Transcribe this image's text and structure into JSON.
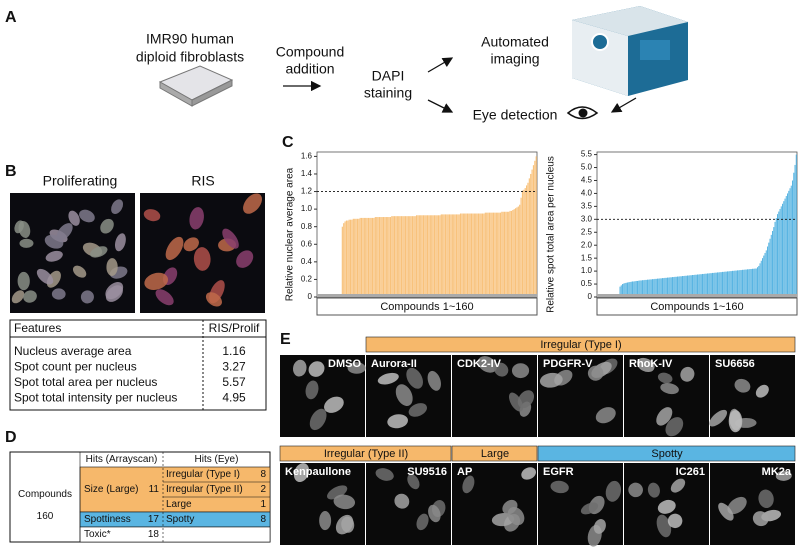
{
  "panel_labels": [
    "A",
    "B",
    "C",
    "D",
    "E"
  ],
  "workflow": {
    "cells": [
      "IMR90 human",
      "diploid fibroblasts"
    ],
    "compound": [
      "Compound",
      "addition"
    ],
    "staining": [
      "DAPI",
      "staining"
    ],
    "imaging": [
      "Automated",
      "imaging"
    ],
    "eye": "Eye detection"
  },
  "microscopy": {
    "proliferating": "Proliferating",
    "ris": "RIS"
  },
  "features_table": {
    "header": [
      "Features",
      "RIS/Prolif"
    ],
    "rows": [
      [
        "Nucleus average area",
        1.16
      ],
      [
        "Spot count per nucleus",
        3.27
      ],
      [
        "Spot total area per nucleus",
        5.57
      ],
      [
        "Spot total intensity per nucleus",
        4.95
      ]
    ]
  },
  "chart_data": [
    {
      "type": "bar",
      "y_label": "Relative nuclear average area",
      "x_label": "Compounds 1~160",
      "color": "#f8c27c",
      "threshold": 1.2,
      "ylim": [
        0,
        1.65
      ],
      "yticks": [
        0,
        0.2,
        0.4,
        0.6,
        0.8,
        {
          "value": 1,
          "label": "1.0"
        },
        1.2,
        1.4,
        1.6
      ],
      "values": [
        0,
        0,
        0,
        0,
        0,
        0,
        0,
        0,
        0,
        0,
        0,
        0,
        0,
        0,
        0,
        0,
        0,
        0,
        0.8,
        0.84,
        0.86,
        0.87,
        0.87,
        0.88,
        0.88,
        0.88,
        0.89,
        0.89,
        0.89,
        0.89,
        0.89,
        0.9,
        0.9,
        0.9,
        0.9,
        0.9,
        0.9,
        0.9,
        0.9,
        0.9,
        0.9,
        0.9,
        0.91,
        0.91,
        0.91,
        0.91,
        0.91,
        0.91,
        0.91,
        0.91,
        0.91,
        0.91,
        0.91,
        0.91,
        0.92,
        0.92,
        0.92,
        0.92,
        0.92,
        0.92,
        0.92,
        0.92,
        0.92,
        0.92,
        0.92,
        0.92,
        0.92,
        0.92,
        0.92,
        0.92,
        0.92,
        0.92,
        0.93,
        0.93,
        0.93,
        0.93,
        0.93,
        0.93,
        0.93,
        0.93,
        0.93,
        0.93,
        0.93,
        0.93,
        0.93,
        0.93,
        0.93,
        0.93,
        0.93,
        0.93,
        0.94,
        0.94,
        0.94,
        0.94,
        0.94,
        0.94,
        0.94,
        0.94,
        0.94,
        0.94,
        0.94,
        0.94,
        0.94,
        0.94,
        0.95,
        0.95,
        0.95,
        0.95,
        0.95,
        0.95,
        0.95,
        0.95,
        0.95,
        0.95,
        0.95,
        0.95,
        0.95,
        0.95,
        0.95,
        0.95,
        0.95,
        0.95,
        0.96,
        0.96,
        0.96,
        0.96,
        0.96,
        0.96,
        0.96,
        0.96,
        0.96,
        0.96,
        0.96,
        0.96,
        0.97,
        0.97,
        0.97,
        0.97,
        0.97,
        0.97,
        0.98,
        0.98,
        0.99,
        1.0,
        1.01,
        1.02,
        1.03,
        1.05,
        1.13,
        1.21,
        1.22,
        1.24,
        1.27,
        1.3,
        1.35,
        1.4,
        1.45,
        1.5,
        1.55,
        1.6
      ]
    },
    {
      "type": "bar",
      "y_label": "Relative spot total area per nucleus",
      "x_label": "Compounds 1~160",
      "color": "#5ab5e2",
      "threshold": 3,
      "ylim": [
        0,
        5.6
      ],
      "yticks": [
        0,
        0.5,
        {
          "value": 1,
          "label": "1.0"
        },
        1.5,
        {
          "value": 2,
          "label": "2.0"
        },
        2.5,
        {
          "value": 3,
          "label": "3.0"
        },
        3.5,
        {
          "value": 4,
          "label": "4.0"
        },
        4.5,
        {
          "value": 5,
          "label": "5.0"
        },
        5.5
      ],
      "values": [
        0,
        0,
        0,
        0,
        0,
        0,
        0,
        0,
        0,
        0,
        0,
        0,
        0,
        0,
        0,
        0,
        0,
        0,
        0.4,
        0.45,
        0.5,
        0.52,
        0.54,
        0.55,
        0.56,
        0.57,
        0.58,
        0.59,
        0.6,
        0.6,
        0.61,
        0.62,
        0.62,
        0.63,
        0.64,
        0.64,
        0.65,
        0.65,
        0.66,
        0.66,
        0.67,
        0.67,
        0.68,
        0.68,
        0.69,
        0.69,
        0.7,
        0.7,
        0.71,
        0.71,
        0.72,
        0.72,
        0.73,
        0.73,
        0.74,
        0.74,
        0.75,
        0.75,
        0.76,
        0.76,
        0.77,
        0.77,
        0.78,
        0.78,
        0.79,
        0.79,
        0.8,
        0.8,
        0.81,
        0.81,
        0.82,
        0.82,
        0.83,
        0.83,
        0.84,
        0.84,
        0.85,
        0.85,
        0.86,
        0.86,
        0.87,
        0.87,
        0.88,
        0.88,
        0.89,
        0.89,
        0.9,
        0.9,
        0.91,
        0.91,
        0.92,
        0.92,
        0.93,
        0.93,
        0.94,
        0.94,
        0.95,
        0.95,
        0.96,
        0.96,
        0.97,
        0.97,
        0.98,
        0.98,
        0.99,
        0.99,
        1.0,
        1.0,
        1.01,
        1.01,
        1.02,
        1.02,
        1.03,
        1.03,
        1.04,
        1.04,
        1.05,
        1.05,
        1.06,
        1.06,
        1.07,
        1.07,
        1.08,
        1.08,
        1.09,
        1.09,
        1.1,
        1.1,
        1.15,
        1.2,
        1.3,
        1.4,
        1.5,
        1.6,
        1.7,
        1.8,
        1.95,
        2.1,
        2.25,
        2.4,
        2.55,
        2.7,
        2.9,
        3.05,
        3.2,
        3.3,
        3.4,
        3.5,
        3.6,
        3.7,
        3.8,
        3.9,
        4.0,
        4.1,
        4.2,
        4.3,
        4.5,
        4.8,
        5.1,
        5.5
      ]
    }
  ],
  "hits_table": {
    "row_label": "Compounds",
    "total": 160,
    "headers": [
      "Hits (Arrayscan)",
      "Hits (Eye)"
    ],
    "groups": [
      {
        "name": "Size (Large)",
        "count": 11,
        "color": "#f6b86b",
        "eye": [
          {
            "name": "Irregular (Type I)",
            "count": 8
          },
          {
            "name": "Irregular (Type II)",
            "count": 2
          },
          {
            "name": "Large",
            "count": 1
          }
        ]
      },
      {
        "name": "Spottiness",
        "count": 17,
        "color": "#5ab5e2",
        "eye": [
          {
            "name": "Spotty",
            "count": 8
          }
        ]
      },
      {
        "name": "Toxic*",
        "count": 18,
        "color": "#ffffff",
        "eye": []
      }
    ]
  },
  "gallery": {
    "rows": [
      {
        "ungrouped": [
          "DMSO"
        ],
        "groups": [
          {
            "label": "Irregular (Type I)",
            "color": "#f6b86b",
            "images": [
              "Aurora-II",
              "CDK2-IV",
              "PDGFR-V",
              "RhoK-IV",
              "SU6656"
            ]
          }
        ]
      },
      {
        "ungrouped": [],
        "groups": [
          {
            "label": "Irregular (Type II)",
            "color": "#f6b86b",
            "images": [
              "Kenpaullone",
              "SU9516"
            ]
          },
          {
            "label": "Large",
            "color": "#f6b86b",
            "images": [
              "AP"
            ]
          },
          {
            "label": "Spotty",
            "color": "#5ab5e2",
            "images": [
              "EGFR",
              "IC261",
              "MK2a"
            ]
          }
        ]
      }
    ]
  }
}
